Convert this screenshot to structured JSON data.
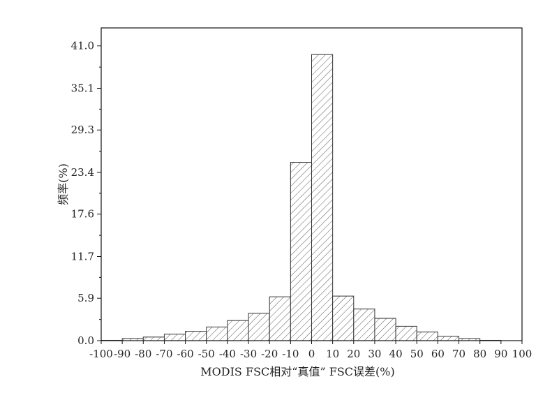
{
  "chart_data": {
    "type": "bar",
    "xlabel": "MODIS FSC相对“真值” FSC误差(%)",
    "ylabel": "频率(%)",
    "xlim": [
      -100,
      100
    ],
    "ylim": [
      0,
      43.5
    ],
    "x_ticks": [
      -100,
      -90,
      -80,
      -70,
      -60,
      -50,
      -40,
      -30,
      -20,
      -10,
      0,
      10,
      20,
      30,
      40,
      50,
      60,
      70,
      80,
      90,
      100
    ],
    "x_tick_labels": [
      "-100",
      "-90",
      "-80",
      "-70",
      "-60",
      "-50",
      "-40",
      "-30",
      "-20",
      "-10",
      "0",
      "10",
      "20",
      "30",
      "40",
      "50",
      "60",
      "70",
      "80",
      "90",
      "100"
    ],
    "y_ticks": [
      0,
      5.9,
      11.7,
      17.6,
      23.4,
      29.3,
      35.1,
      41.0
    ],
    "y_tick_labels": [
      "0.0",
      "5.9",
      "11.7",
      "17.6",
      "23.4",
      "29.3",
      "35.1",
      "41.0"
    ],
    "bins": [
      {
        "from": -100,
        "to": -90,
        "value": 0.05
      },
      {
        "from": -90,
        "to": -80,
        "value": 0.3
      },
      {
        "from": -80,
        "to": -70,
        "value": 0.5
      },
      {
        "from": -70,
        "to": -60,
        "value": 0.9
      },
      {
        "from": -60,
        "to": -50,
        "value": 1.3
      },
      {
        "from": -50,
        "to": -40,
        "value": 1.9
      },
      {
        "from": -40,
        "to": -30,
        "value": 2.8
      },
      {
        "from": -30,
        "to": -20,
        "value": 3.8
      },
      {
        "from": -20,
        "to": -10,
        "value": 6.1
      },
      {
        "from": -10,
        "to": 0,
        "value": 24.8
      },
      {
        "from": 0,
        "to": 10,
        "value": 39.8
      },
      {
        "from": 10,
        "to": 20,
        "value": 6.2
      },
      {
        "from": 20,
        "to": 30,
        "value": 4.4
      },
      {
        "from": 30,
        "to": 40,
        "value": 3.1
      },
      {
        "from": 40,
        "to": 50,
        "value": 2.0
      },
      {
        "from": 50,
        "to": 60,
        "value": 1.2
      },
      {
        "from": 60,
        "to": 70,
        "value": 0.6
      },
      {
        "from": 70,
        "to": 80,
        "value": 0.3
      },
      {
        "from": 80,
        "to": 90,
        "value": 0.05
      }
    ],
    "fill_pattern": "diagonal-hatch",
    "bar_stroke": "#333333",
    "grid": false,
    "legend": "none"
  }
}
